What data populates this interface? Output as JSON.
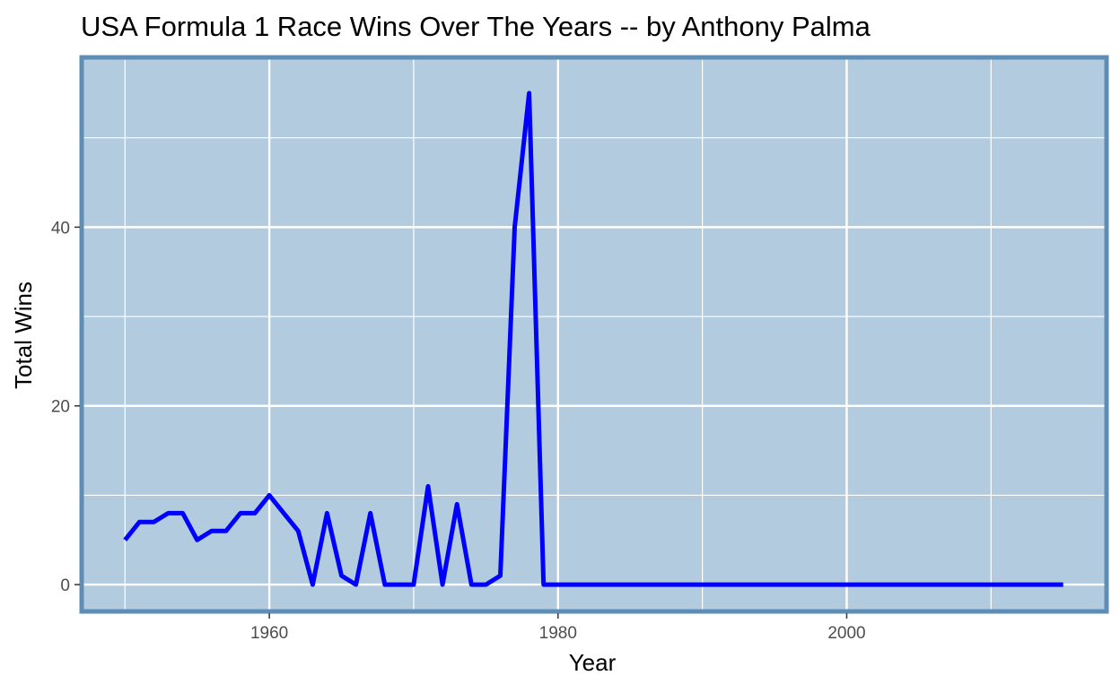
{
  "chart_data": {
    "type": "line",
    "title": "USA Formula 1 Race Wins Over The Years -- by Anthony Palma",
    "xlabel": "Year",
    "ylabel": "Total Wins",
    "xlim": [
      1947,
      2018
    ],
    "ylim": [
      -3,
      59
    ],
    "x_ticks": [
      1960,
      1980,
      2000
    ],
    "x_tick_labels": [
      "1960",
      "1980",
      "2000"
    ],
    "x_minor_ticks": [
      1950,
      1970,
      1990,
      2010
    ],
    "y_ticks": [
      0,
      20,
      40
    ],
    "y_tick_labels": [
      "0",
      "20",
      "40"
    ],
    "y_minor_ticks": [
      10,
      30,
      50
    ],
    "grid": true,
    "colors": {
      "panel_background": "#b3cbdf",
      "panel_border": "#5e8db5",
      "grid": "#ffffff",
      "line": "#0000ff"
    },
    "series": [
      {
        "x": [
          1950,
          1951,
          1952,
          1953,
          1954,
          1955,
          1956,
          1957,
          1958,
          1959,
          1960,
          1961,
          1962,
          1963,
          1964,
          1965,
          1966,
          1967,
          1968,
          1969,
          1970,
          1971,
          1972,
          1973,
          1974,
          1975,
          1976,
          1977,
          1978,
          1979,
          1980,
          1985,
          1990,
          1995,
          2000,
          2005,
          2010,
          2015
        ],
        "values": [
          5,
          7,
          7,
          8,
          8,
          5,
          6,
          6,
          8,
          8,
          10,
          8,
          6,
          0,
          8,
          1,
          0,
          8,
          0,
          0,
          0,
          11,
          0,
          9,
          0,
          0,
          1,
          40,
          55,
          0,
          0,
          0,
          0,
          0,
          0,
          0,
          0,
          0
        ]
      }
    ]
  }
}
